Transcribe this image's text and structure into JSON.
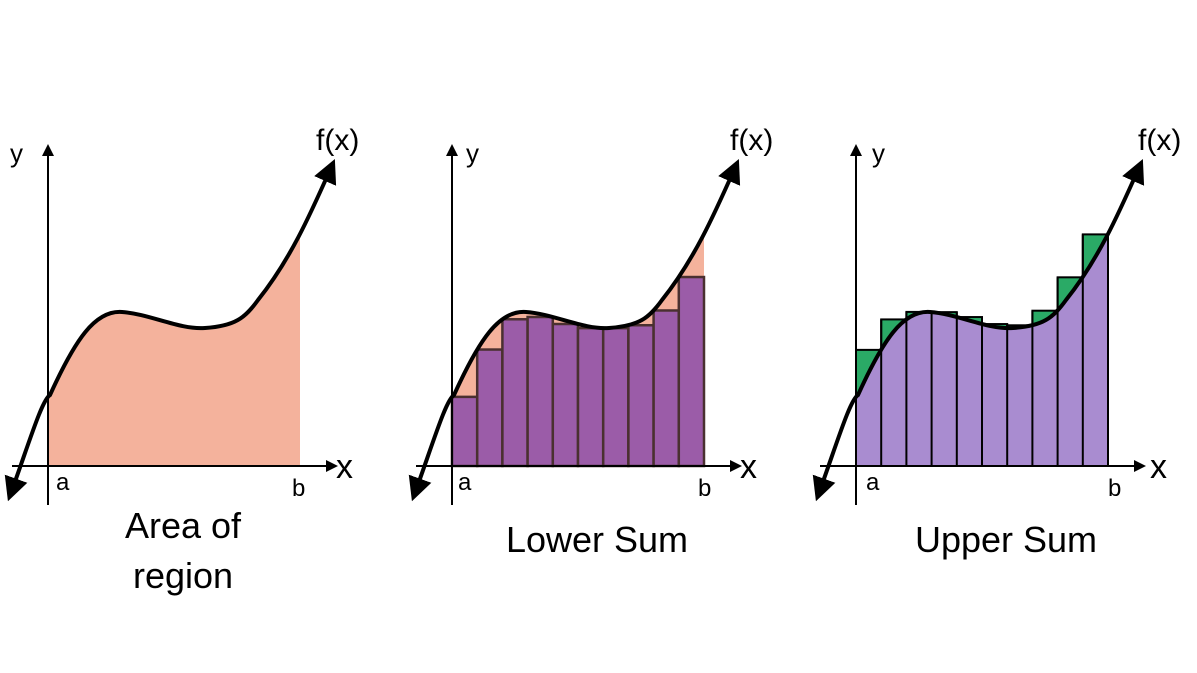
{
  "colors": {
    "area_fill": "#f4b29c",
    "lower_rect_fill": "#9b5ca8",
    "lower_rect_stroke": "#4a3030",
    "upper_rect_fill": "#a98cd0",
    "upper_excess_fill": "#2aaa66",
    "curve": "#000000"
  },
  "panels": [
    {
      "id": "area",
      "y_label": "y",
      "x_label": "x",
      "a_label": "a",
      "b_label": "b",
      "f_label": "f(x)",
      "caption_lines": [
        "Area of",
        "region"
      ]
    },
    {
      "id": "lower",
      "y_label": "y",
      "x_label": "x",
      "a_label": "a",
      "b_label": "b",
      "f_label": "f(x)",
      "caption_lines": [
        "Lower Sum"
      ],
      "rectangle_count": 10
    },
    {
      "id": "upper",
      "y_label": "y",
      "x_label": "x",
      "a_label": "a",
      "b_label": "b",
      "f_label": "f(x)",
      "caption_lines": [
        "Upper Sum"
      ],
      "rectangle_count": 10
    }
  ]
}
